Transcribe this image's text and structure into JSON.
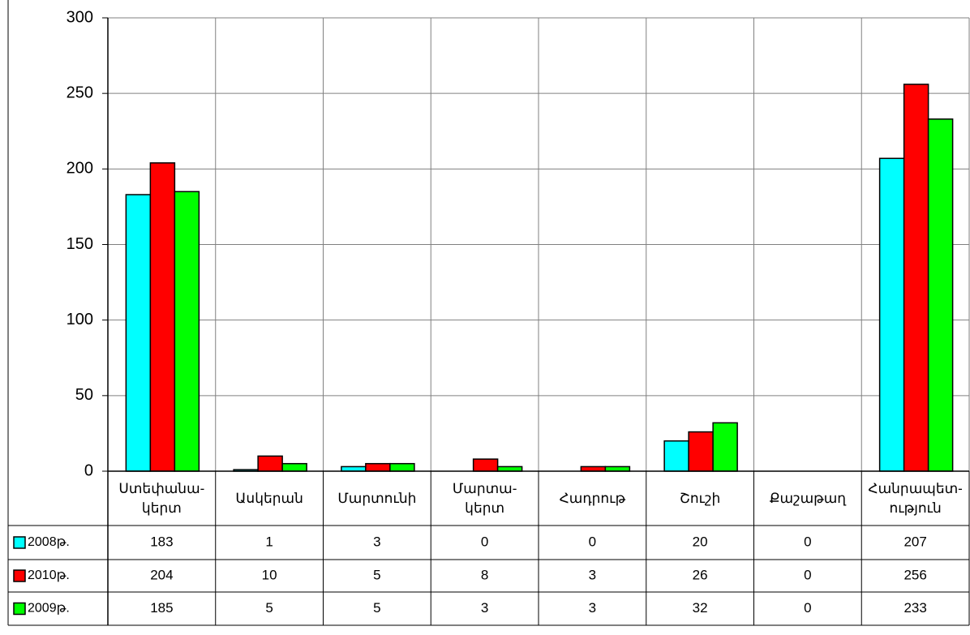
{
  "chart_data": {
    "type": "bar",
    "categories": [
      "Ստեփանա-\nկերտ",
      "Ասկերան",
      "Մարտունի",
      "Մարտա-\nկերտ",
      "Հադրութ",
      "Շուշի",
      "Քաշաթաղ",
      "Հանրապետ-\nություն"
    ],
    "series": [
      {
        "name": "2008թ.",
        "color": "#00ffff",
        "values": [
          183,
          1,
          3,
          0,
          0,
          20,
          0,
          207
        ]
      },
      {
        "name": "2010թ.",
        "color": "#ff0000",
        "values": [
          204,
          10,
          5,
          8,
          3,
          26,
          0,
          256
        ]
      },
      {
        "name": "2009թ.",
        "color": "#00ff00",
        "values": [
          185,
          5,
          5,
          3,
          3,
          32,
          0,
          233
        ]
      }
    ],
    "ylim": [
      0,
      300
    ],
    "yticks": [
      0,
      50,
      100,
      150,
      200,
      250,
      300
    ],
    "grid": true
  }
}
